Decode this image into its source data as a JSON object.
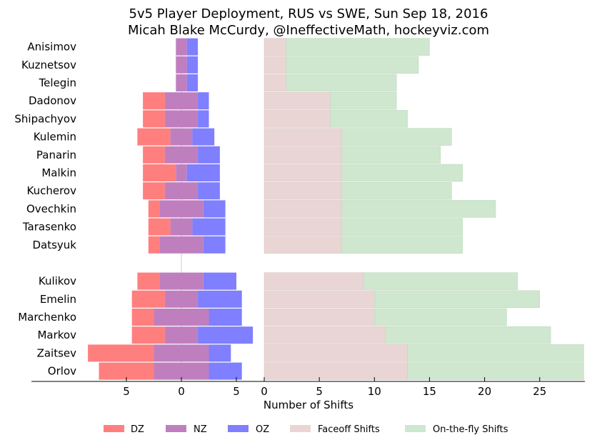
{
  "chart_data": {
    "type": "bar",
    "title": "5v5 Player Deployment, RUS vs SWE, Sun Sep 18, 2016",
    "subtitle": "Micah Blake McCurdy, @IneffectiveMath, hockeyviz.com",
    "xlabel": "Number of Shifts",
    "colors": {
      "dz": "#ff7f7f",
      "nz": "#bf7fbf",
      "oz": "#7f7fff",
      "faceoff": "#ead5d5",
      "otf": "#cfe6cf"
    },
    "legend": {
      "placement": "bottom",
      "entries": [
        {
          "key": "dz",
          "label": "DZ"
        },
        {
          "key": "nz",
          "label": "NZ"
        },
        {
          "key": "oz",
          "label": "OZ"
        },
        {
          "key": "faceoff",
          "label": "Faceoff Shifts"
        },
        {
          "key": "otf",
          "label": "On-the-fly Shifts"
        }
      ]
    },
    "left_ticks": {
      "labels": [
        "5",
        "0",
        "5"
      ],
      "values": [
        -5,
        0,
        5
      ]
    },
    "right_ticks": {
      "labels": [
        "0",
        "5",
        "10",
        "15",
        "20",
        "25"
      ],
      "values": [
        0,
        5,
        10,
        15,
        20,
        25
      ]
    },
    "right_xlim": [
      0,
      29
    ],
    "forwards": [
      {
        "name": "Anisimov",
        "dz": 0,
        "nz": 1,
        "oz": 1,
        "faceoff": 2,
        "otf": 13
      },
      {
        "name": "Kuznetsov",
        "dz": 0,
        "nz": 1,
        "oz": 1,
        "faceoff": 2,
        "otf": 12
      },
      {
        "name": "Telegin",
        "dz": 0,
        "nz": 1,
        "oz": 1,
        "faceoff": 2,
        "otf": 10
      },
      {
        "name": "Dadonov",
        "dz": 2,
        "nz": 3,
        "oz": 1,
        "faceoff": 6,
        "otf": 6
      },
      {
        "name": "Shipachyov",
        "dz": 2,
        "nz": 3,
        "oz": 1,
        "faceoff": 6,
        "otf": 7
      },
      {
        "name": "Kulemin",
        "dz": 3,
        "nz": 2,
        "oz": 2,
        "faceoff": 7,
        "otf": 10
      },
      {
        "name": "Panarin",
        "dz": 2,
        "nz": 3,
        "oz": 2,
        "faceoff": 7,
        "otf": 9
      },
      {
        "name": "Malkin",
        "dz": 3,
        "nz": 1,
        "oz": 3,
        "faceoff": 7,
        "otf": 11
      },
      {
        "name": "Kucherov",
        "dz": 2,
        "nz": 3,
        "oz": 2,
        "faceoff": 7,
        "otf": 10
      },
      {
        "name": "Ovechkin",
        "dz": 1,
        "nz": 4,
        "oz": 2,
        "faceoff": 7,
        "otf": 14
      },
      {
        "name": "Tarasenko",
        "dz": 2,
        "nz": 2,
        "oz": 3,
        "faceoff": 7,
        "otf": 11
      },
      {
        "name": "Datsyuk",
        "dz": 1,
        "nz": 4,
        "oz": 2,
        "faceoff": 7,
        "otf": 11
      }
    ],
    "defense": [
      {
        "name": "Kulikov",
        "dz": 2,
        "nz": 4,
        "oz": 3,
        "faceoff": 9,
        "otf": 14
      },
      {
        "name": "Emelin",
        "dz": 3,
        "nz": 3,
        "oz": 4,
        "faceoff": 10,
        "otf": 15
      },
      {
        "name": "Marchenko",
        "dz": 2,
        "nz": 5,
        "oz": 3,
        "faceoff": 10,
        "otf": 12
      },
      {
        "name": "Markov",
        "dz": 3,
        "nz": 3,
        "oz": 5,
        "faceoff": 11,
        "otf": 15
      },
      {
        "name": "Zaitsev",
        "dz": 6,
        "nz": 5,
        "oz": 2,
        "faceoff": 13,
        "otf": 16
      },
      {
        "name": "Orlov",
        "dz": 5,
        "nz": 5,
        "oz": 3,
        "faceoff": 13,
        "otf": 16
      }
    ]
  }
}
